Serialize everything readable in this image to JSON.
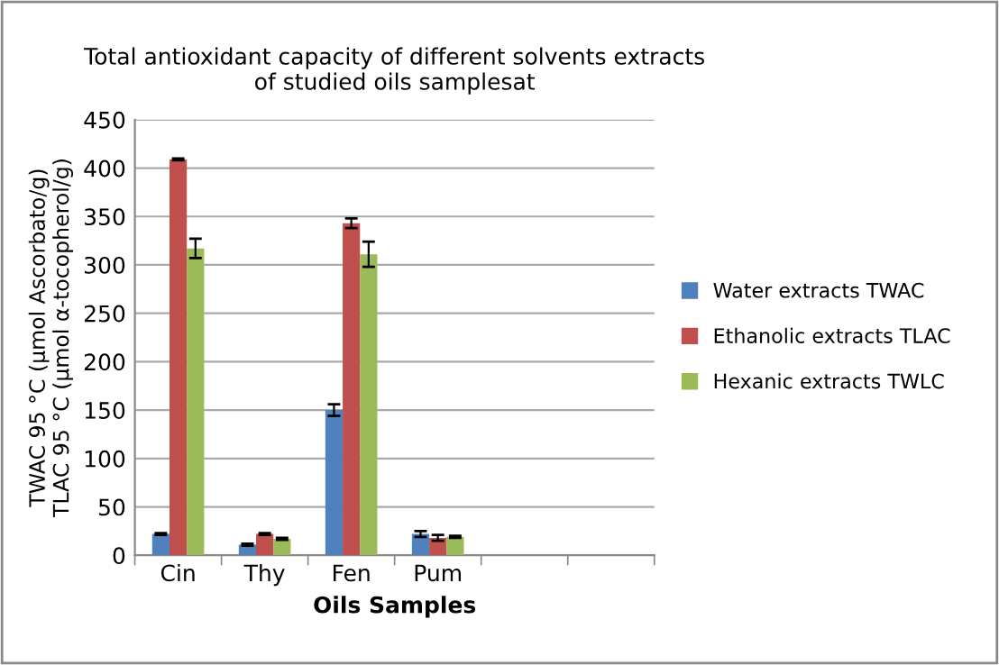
{
  "chart_data": {
    "type": "bar",
    "title": "Total antioxidant capacity of different solvents extracts\nof studied oils samplesat",
    "xlabel": "Oils Samples",
    "ylabel": "TWAC 95 °C (µmol Ascorbato/g)\nTLAC 95 °C (µmol α-tocopherol/g)",
    "categories": [
      "Cin",
      "Thy",
      "Fen",
      "Pum",
      null,
      null
    ],
    "series": [
      {
        "name": "Water extracts TWAC",
        "color": "#4f81bd",
        "values": [
          22,
          11,
          150,
          22,
          null,
          null
        ],
        "errors": [
          1,
          1,
          6,
          3,
          null,
          null
        ]
      },
      {
        "name": "Ethanolic extracts TLAC",
        "color": "#c0504d",
        "values": [
          409,
          22,
          343,
          18,
          null,
          null
        ],
        "errors": [
          1,
          1,
          5,
          3,
          null,
          null
        ]
      },
      {
        "name": "Hexanic extracts TWLC",
        "color": "#9bbb59",
        "values": [
          317,
          17,
          311,
          19,
          null,
          null
        ],
        "errors": [
          10,
          1,
          13,
          1,
          null,
          null
        ]
      }
    ],
    "ylim": [
      0,
      450
    ],
    "yticks": [
      0,
      50,
      100,
      150,
      200,
      250,
      300,
      350,
      400,
      450
    ],
    "grid": "y",
    "legend": "right"
  }
}
